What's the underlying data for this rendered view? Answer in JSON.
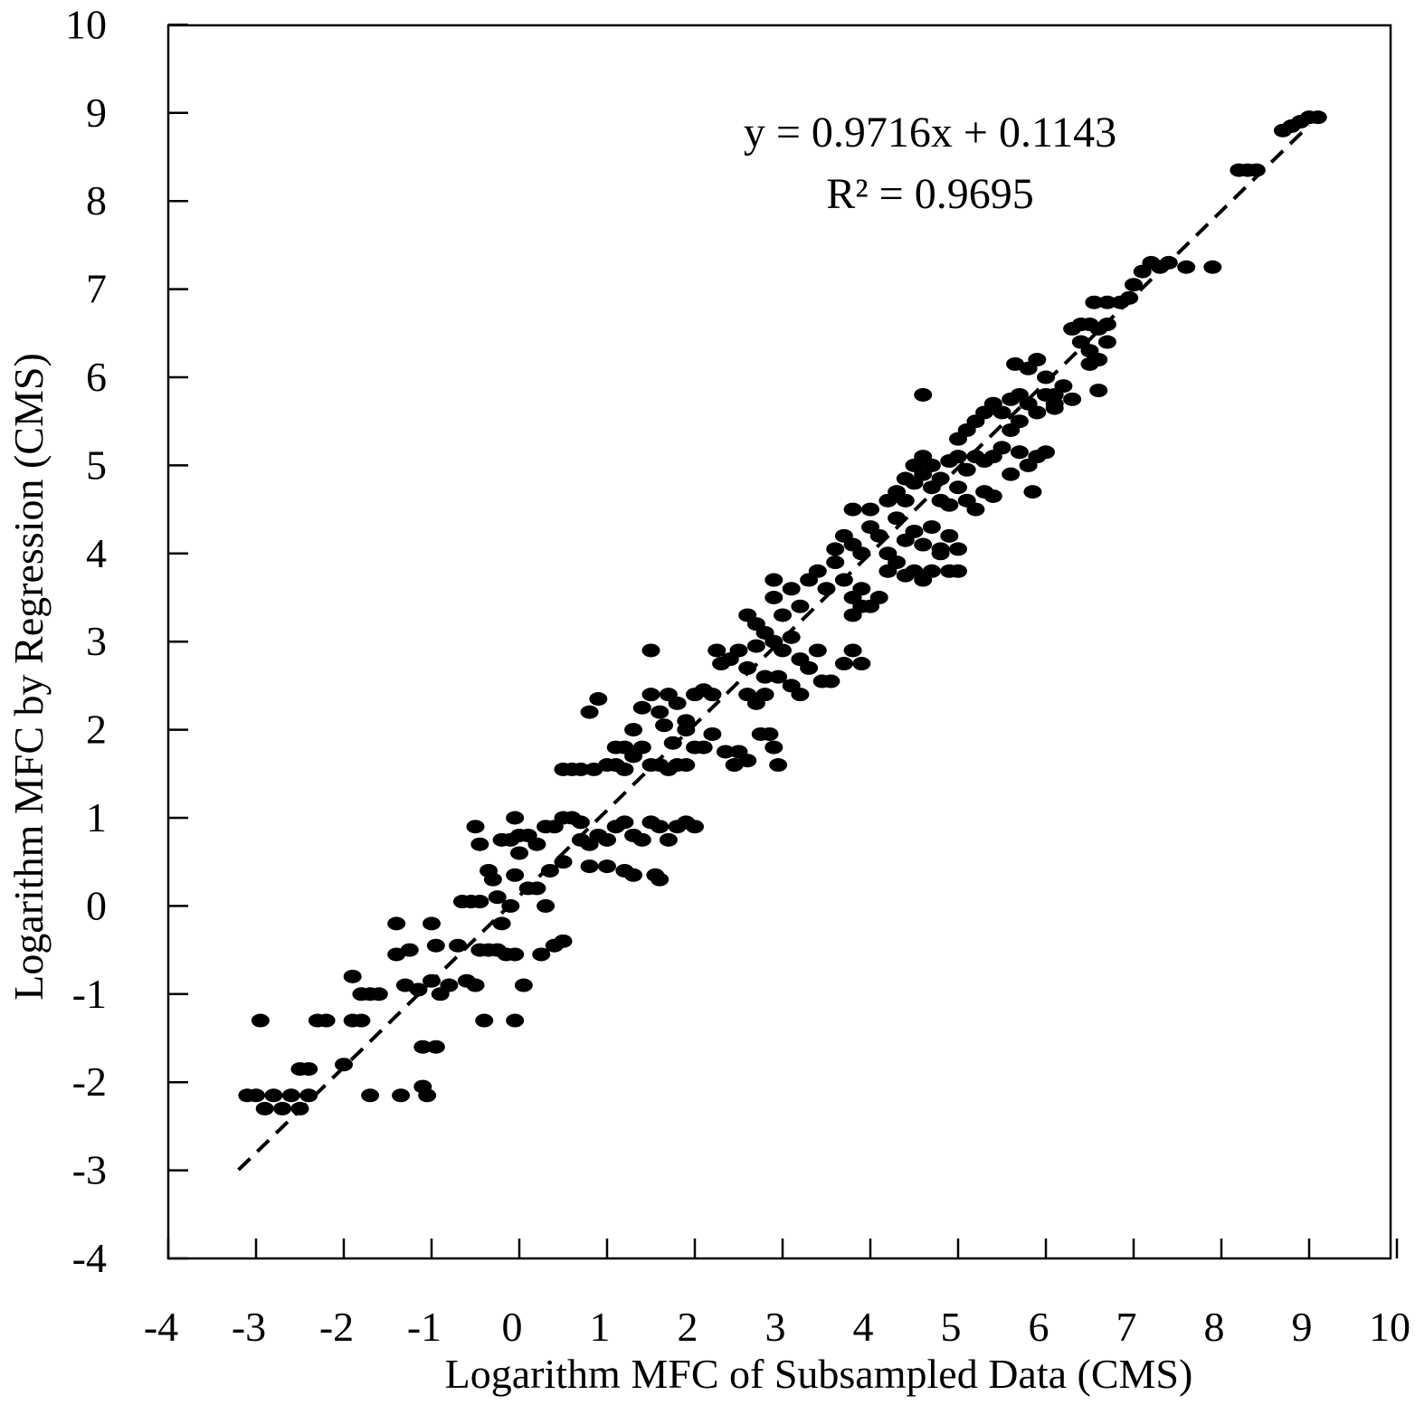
{
  "chart_data": {
    "type": "scatter",
    "xlabel": "Logarithm MFC of Subsampled Data (CMS)",
    "ylabel": "Logarithm MFC by Regression (CMS)",
    "xlim": [
      -4,
      10
    ],
    "ylim": [
      -4,
      10
    ],
    "xticks": [
      "-4",
      "-3",
      "-2",
      "-1",
      "0",
      "1",
      "2",
      "3",
      "4",
      "5",
      "6",
      "7",
      "8",
      "9",
      "10"
    ],
    "yticks": [
      "-4",
      "-3",
      "-2",
      "-1",
      "0",
      "1",
      "2",
      "3",
      "4",
      "5",
      "6",
      "7",
      "8",
      "9",
      "10"
    ],
    "grid": false,
    "marker_color": "#000000",
    "annotations": [
      "y = 0.9716x + 0.1143",
      "R² = 0.9695"
    ],
    "trendline": {
      "style": "dashed",
      "slope": 0.9716,
      "intercept": 0.1143,
      "x_range": [
        -3.2,
        9.0
      ]
    },
    "points": [
      [
        -3.1,
        -2.15
      ],
      [
        -3.0,
        -2.15
      ],
      [
        -2.9,
        -2.3
      ],
      [
        -2.8,
        -2.15
      ],
      [
        -2.7,
        -2.3
      ],
      [
        -2.6,
        -2.15
      ],
      [
        -2.5,
        -2.3
      ],
      [
        -2.4,
        -2.15
      ],
      [
        -2.95,
        -1.3
      ],
      [
        -2.5,
        -1.85
      ],
      [
        -2.4,
        -1.85
      ],
      [
        -2.3,
        -1.3
      ],
      [
        -2.2,
        -1.3
      ],
      [
        -2.0,
        -1.8
      ],
      [
        -1.9,
        -1.3
      ],
      [
        -1.8,
        -1.3
      ],
      [
        -1.9,
        -0.8
      ],
      [
        -1.8,
        -1.0
      ],
      [
        -1.7,
        -1.0
      ],
      [
        -1.6,
        -1.0
      ],
      [
        -1.7,
        -2.15
      ],
      [
        -1.35,
        -2.15
      ],
      [
        -1.1,
        -2.05
      ],
      [
        -1.05,
        -2.15
      ],
      [
        -1.1,
        -1.6
      ],
      [
        -0.95,
        -1.6
      ],
      [
        -1.4,
        -0.55
      ],
      [
        -1.4,
        -0.2
      ],
      [
        -1.25,
        -0.5
      ],
      [
        -1.3,
        -0.9
      ],
      [
        -1.15,
        -0.95
      ],
      [
        -1.0,
        -0.85
      ],
      [
        -0.9,
        -1.0
      ],
      [
        -0.8,
        -0.9
      ],
      [
        -1.0,
        -0.2
      ],
      [
        -0.95,
        -0.45
      ],
      [
        -0.7,
        -0.45
      ],
      [
        -0.6,
        -0.85
      ],
      [
        -0.5,
        -0.9
      ],
      [
        -0.65,
        0.05
      ],
      [
        -0.55,
        0.05
      ],
      [
        -0.45,
        0.05
      ],
      [
        -0.45,
        -0.5
      ],
      [
        -0.35,
        -0.5
      ],
      [
        -0.25,
        -0.5
      ],
      [
        -0.15,
        -0.55
      ],
      [
        -0.05,
        -0.55
      ],
      [
        -0.4,
        -1.3
      ],
      [
        -0.05,
        -1.3
      ],
      [
        0.05,
        -0.9
      ],
      [
        -0.5,
        0.9
      ],
      [
        -0.45,
        0.7
      ],
      [
        -0.35,
        0.4
      ],
      [
        -0.3,
        0.3
      ],
      [
        -0.25,
        0.1
      ],
      [
        -0.2,
        -0.2
      ],
      [
        -0.1,
        0.0
      ],
      [
        -0.05,
        0.35
      ],
      [
        0.0,
        0.6
      ],
      [
        0.1,
        0.2
      ],
      [
        0.2,
        0.2
      ],
      [
        0.3,
        0.0
      ],
      [
        -0.2,
        0.75
      ],
      [
        -0.1,
        0.75
      ],
      [
        0.0,
        0.8
      ],
      [
        0.1,
        0.8
      ],
      [
        0.2,
        0.7
      ],
      [
        0.3,
        0.9
      ],
      [
        0.4,
        0.9
      ],
      [
        0.5,
        1.0
      ],
      [
        0.6,
        1.0
      ],
      [
        0.7,
        0.95
      ],
      [
        0.35,
        0.4
      ],
      [
        0.5,
        0.5
      ],
      [
        0.4,
        -0.45
      ],
      [
        0.5,
        -0.4
      ],
      [
        0.25,
        -0.55
      ],
      [
        -0.05,
        1.0
      ],
      [
        0.7,
        0.75
      ],
      [
        0.8,
        0.7
      ],
      [
        0.9,
        0.8
      ],
      [
        1.0,
        0.75
      ],
      [
        1.1,
        0.9
      ],
      [
        1.2,
        0.95
      ],
      [
        1.3,
        0.8
      ],
      [
        1.4,
        0.75
      ],
      [
        1.5,
        0.95
      ],
      [
        1.6,
        0.9
      ],
      [
        1.7,
        0.75
      ],
      [
        1.8,
        0.9
      ],
      [
        1.9,
        0.95
      ],
      [
        2.0,
        0.9
      ],
      [
        0.8,
        0.45
      ],
      [
        1.0,
        0.45
      ],
      [
        1.2,
        0.4
      ],
      [
        1.3,
        0.35
      ],
      [
        1.55,
        0.35
      ],
      [
        1.6,
        0.3
      ],
      [
        0.5,
        1.55
      ],
      [
        0.6,
        1.55
      ],
      [
        0.7,
        1.55
      ],
      [
        0.85,
        1.55
      ],
      [
        1.0,
        1.6
      ],
      [
        1.1,
        1.6
      ],
      [
        1.2,
        1.55
      ],
      [
        1.3,
        1.7
      ],
      [
        1.4,
        1.8
      ],
      [
        1.5,
        1.6
      ],
      [
        1.6,
        1.6
      ],
      [
        1.7,
        1.55
      ],
      [
        1.8,
        1.6
      ],
      [
        1.9,
        1.6
      ],
      [
        0.8,
        2.2
      ],
      [
        0.9,
        2.35
      ],
      [
        1.1,
        1.8
      ],
      [
        1.2,
        1.8
      ],
      [
        1.3,
        2.0
      ],
      [
        1.4,
        2.25
      ],
      [
        1.5,
        2.4
      ],
      [
        1.6,
        2.2
      ],
      [
        1.7,
        2.4
      ],
      [
        1.8,
        2.3
      ],
      [
        1.9,
        2.0
      ],
      [
        2.0,
        2.4
      ],
      [
        2.1,
        2.45
      ],
      [
        2.2,
        2.4
      ],
      [
        1.5,
        2.9
      ],
      [
        1.65,
        2.05
      ],
      [
        1.75,
        1.85
      ],
      [
        1.9,
        2.1
      ],
      [
        2.0,
        1.8
      ],
      [
        2.1,
        1.8
      ],
      [
        2.2,
        1.95
      ],
      [
        2.35,
        1.75
      ],
      [
        2.5,
        1.75
      ],
      [
        2.45,
        1.6
      ],
      [
        2.6,
        1.65
      ],
      [
        2.75,
        1.95
      ],
      [
        2.85,
        1.95
      ],
      [
        2.9,
        1.8
      ],
      [
        2.95,
        1.6
      ],
      [
        2.25,
        2.9
      ],
      [
        2.3,
        2.75
      ],
      [
        2.4,
        2.8
      ],
      [
        2.5,
        2.9
      ],
      [
        2.6,
        2.7
      ],
      [
        2.7,
        2.95
      ],
      [
        2.8,
        2.6
      ],
      [
        2.9,
        3.0
      ],
      [
        3.0,
        2.9
      ],
      [
        3.1,
        3.05
      ],
      [
        3.2,
        2.8
      ],
      [
        3.3,
        2.7
      ],
      [
        3.4,
        2.9
      ],
      [
        2.6,
        2.4
      ],
      [
        2.7,
        2.3
      ],
      [
        2.8,
        2.4
      ],
      [
        2.95,
        2.6
      ],
      [
        3.1,
        2.5
      ],
      [
        3.2,
        2.4
      ],
      [
        3.45,
        2.55
      ],
      [
        3.55,
        2.55
      ],
      [
        3.7,
        2.75
      ],
      [
        3.8,
        2.9
      ],
      [
        3.9,
        2.75
      ],
      [
        2.6,
        3.3
      ],
      [
        2.7,
        3.2
      ],
      [
        2.8,
        3.1
      ],
      [
        2.9,
        3.5
      ],
      [
        3.0,
        3.3
      ],
      [
        3.1,
        3.6
      ],
      [
        3.2,
        3.4
      ],
      [
        3.3,
        3.7
      ],
      [
        3.4,
        3.8
      ],
      [
        3.5,
        3.6
      ],
      [
        3.6,
        3.9
      ],
      [
        3.7,
        3.7
      ],
      [
        3.8,
        3.5
      ],
      [
        3.9,
        3.6
      ],
      [
        2.9,
        3.7
      ],
      [
        3.6,
        4.05
      ],
      [
        3.7,
        4.2
      ],
      [
        3.8,
        4.1
      ],
      [
        3.9,
        4.0
      ],
      [
        4.0,
        4.3
      ],
      [
        4.1,
        4.2
      ],
      [
        4.2,
        4.0
      ],
      [
        4.3,
        4.4
      ],
      [
        4.4,
        4.15
      ],
      [
        4.5,
        4.25
      ],
      [
        4.6,
        4.1
      ],
      [
        4.7,
        4.3
      ],
      [
        4.8,
        4.0
      ],
      [
        4.9,
        4.2
      ],
      [
        3.8,
        3.3
      ],
      [
        3.9,
        3.4
      ],
      [
        4.0,
        3.4
      ],
      [
        4.1,
        3.5
      ],
      [
        4.2,
        3.8
      ],
      [
        4.3,
        3.9
      ],
      [
        4.4,
        3.75
      ],
      [
        4.5,
        3.8
      ],
      [
        4.6,
        3.7
      ],
      [
        4.7,
        3.8
      ],
      [
        4.9,
        3.8
      ],
      [
        5.0,
        3.8
      ],
      [
        5.0,
        4.05
      ],
      [
        4.8,
        4.05
      ],
      [
        3.8,
        4.5
      ],
      [
        4.0,
        4.5
      ],
      [
        4.2,
        4.6
      ],
      [
        4.3,
        4.7
      ],
      [
        4.4,
        4.6
      ],
      [
        4.5,
        4.8
      ],
      [
        4.6,
        4.9
      ],
      [
        4.7,
        5.0
      ],
      [
        4.8,
        4.85
      ],
      [
        4.9,
        5.05
      ],
      [
        5.0,
        5.1
      ],
      [
        5.1,
        4.95
      ],
      [
        5.2,
        5.1
      ],
      [
        4.6,
        5.8
      ],
      [
        4.4,
        4.85
      ],
      [
        4.5,
        5.0
      ],
      [
        4.6,
        5.1
      ],
      [
        4.7,
        4.75
      ],
      [
        4.8,
        4.6
      ],
      [
        4.9,
        4.55
      ],
      [
        5.0,
        4.75
      ],
      [
        5.1,
        4.6
      ],
      [
        5.2,
        4.5
      ],
      [
        5.3,
        4.7
      ],
      [
        5.4,
        4.65
      ],
      [
        5.0,
        5.3
      ],
      [
        5.1,
        5.4
      ],
      [
        5.2,
        5.5
      ],
      [
        5.3,
        5.6
      ],
      [
        5.4,
        5.7
      ],
      [
        5.5,
        5.6
      ],
      [
        5.6,
        5.75
      ],
      [
        5.7,
        5.8
      ],
      [
        5.8,
        5.7
      ],
      [
        5.9,
        5.6
      ],
      [
        6.0,
        5.8
      ],
      [
        6.1,
        5.7
      ],
      [
        5.65,
        6.15
      ],
      [
        5.3,
        5.05
      ],
      [
        5.4,
        5.1
      ],
      [
        5.5,
        5.2
      ],
      [
        5.6,
        4.9
      ],
      [
        5.7,
        5.15
      ],
      [
        5.8,
        5.0
      ],
      [
        5.9,
        5.1
      ],
      [
        6.0,
        5.15
      ],
      [
        5.85,
        4.7
      ],
      [
        5.6,
        5.4
      ],
      [
        5.7,
        5.5
      ],
      [
        5.8,
        6.1
      ],
      [
        5.9,
        6.2
      ],
      [
        6.0,
        6.0
      ],
      [
        6.1,
        5.8
      ],
      [
        6.2,
        5.9
      ],
      [
        6.3,
        5.75
      ],
      [
        6.1,
        5.65
      ],
      [
        6.4,
        6.4
      ],
      [
        6.5,
        6.3
      ],
      [
        6.6,
        6.2
      ],
      [
        6.6,
        5.85
      ],
      [
        6.5,
        6.15
      ],
      [
        6.7,
        6.4
      ],
      [
        6.3,
        6.55
      ],
      [
        6.4,
        6.6
      ],
      [
        6.5,
        6.6
      ],
      [
        6.6,
        6.55
      ],
      [
        6.7,
        6.6
      ],
      [
        6.55,
        6.85
      ],
      [
        6.7,
        6.85
      ],
      [
        6.85,
        6.85
      ],
      [
        6.95,
        6.9
      ],
      [
        7.0,
        7.05
      ],
      [
        7.1,
        7.2
      ],
      [
        7.2,
        7.3
      ],
      [
        7.3,
        7.25
      ],
      [
        7.4,
        7.3
      ],
      [
        7.6,
        7.25
      ],
      [
        7.9,
        7.25
      ],
      [
        8.2,
        8.35
      ],
      [
        8.3,
        8.35
      ],
      [
        8.4,
        8.35
      ],
      [
        8.7,
        8.8
      ],
      [
        8.8,
        8.85
      ],
      [
        8.9,
        8.9
      ],
      [
        9.0,
        8.95
      ],
      [
        9.1,
        8.95
      ]
    ]
  }
}
